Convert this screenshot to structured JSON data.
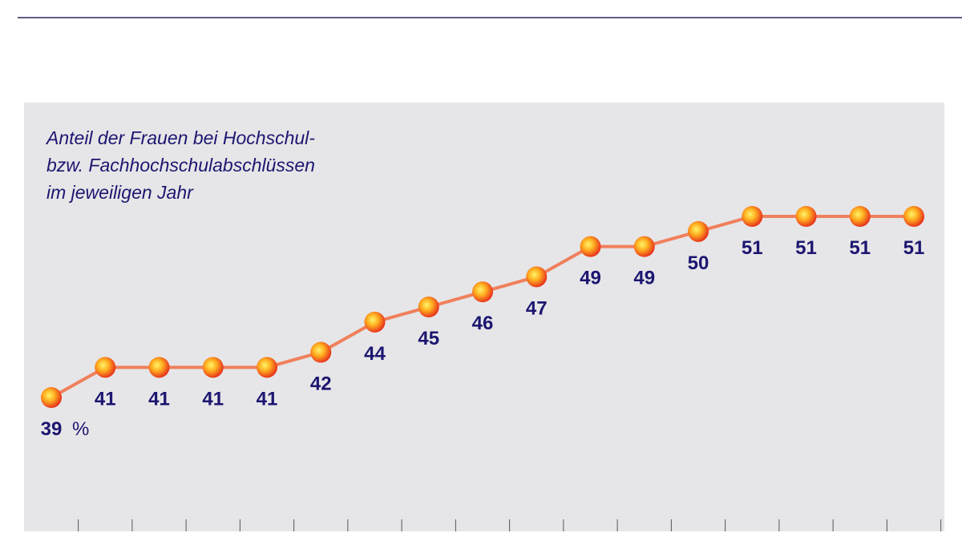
{
  "chart_data": {
    "type": "line",
    "title": [
      "Anteil der Frauen bei Hochschul-",
      "bzw. Fachhochschulabschlüssen",
      "im jeweiligen Jahr"
    ],
    "unit_label": "%",
    "categories": [
      null,
      null,
      null,
      null,
      null,
      null,
      null,
      null,
      null,
      null,
      null,
      null,
      null,
      null,
      null,
      null,
      null
    ],
    "series": [
      {
        "color": "#f0805c",
        "values": [
          39,
          41,
          41,
          41,
          41,
          42,
          44,
          45,
          46,
          47,
          49,
          49,
          50,
          51,
          51,
          51,
          51
        ]
      }
    ]
  }
}
